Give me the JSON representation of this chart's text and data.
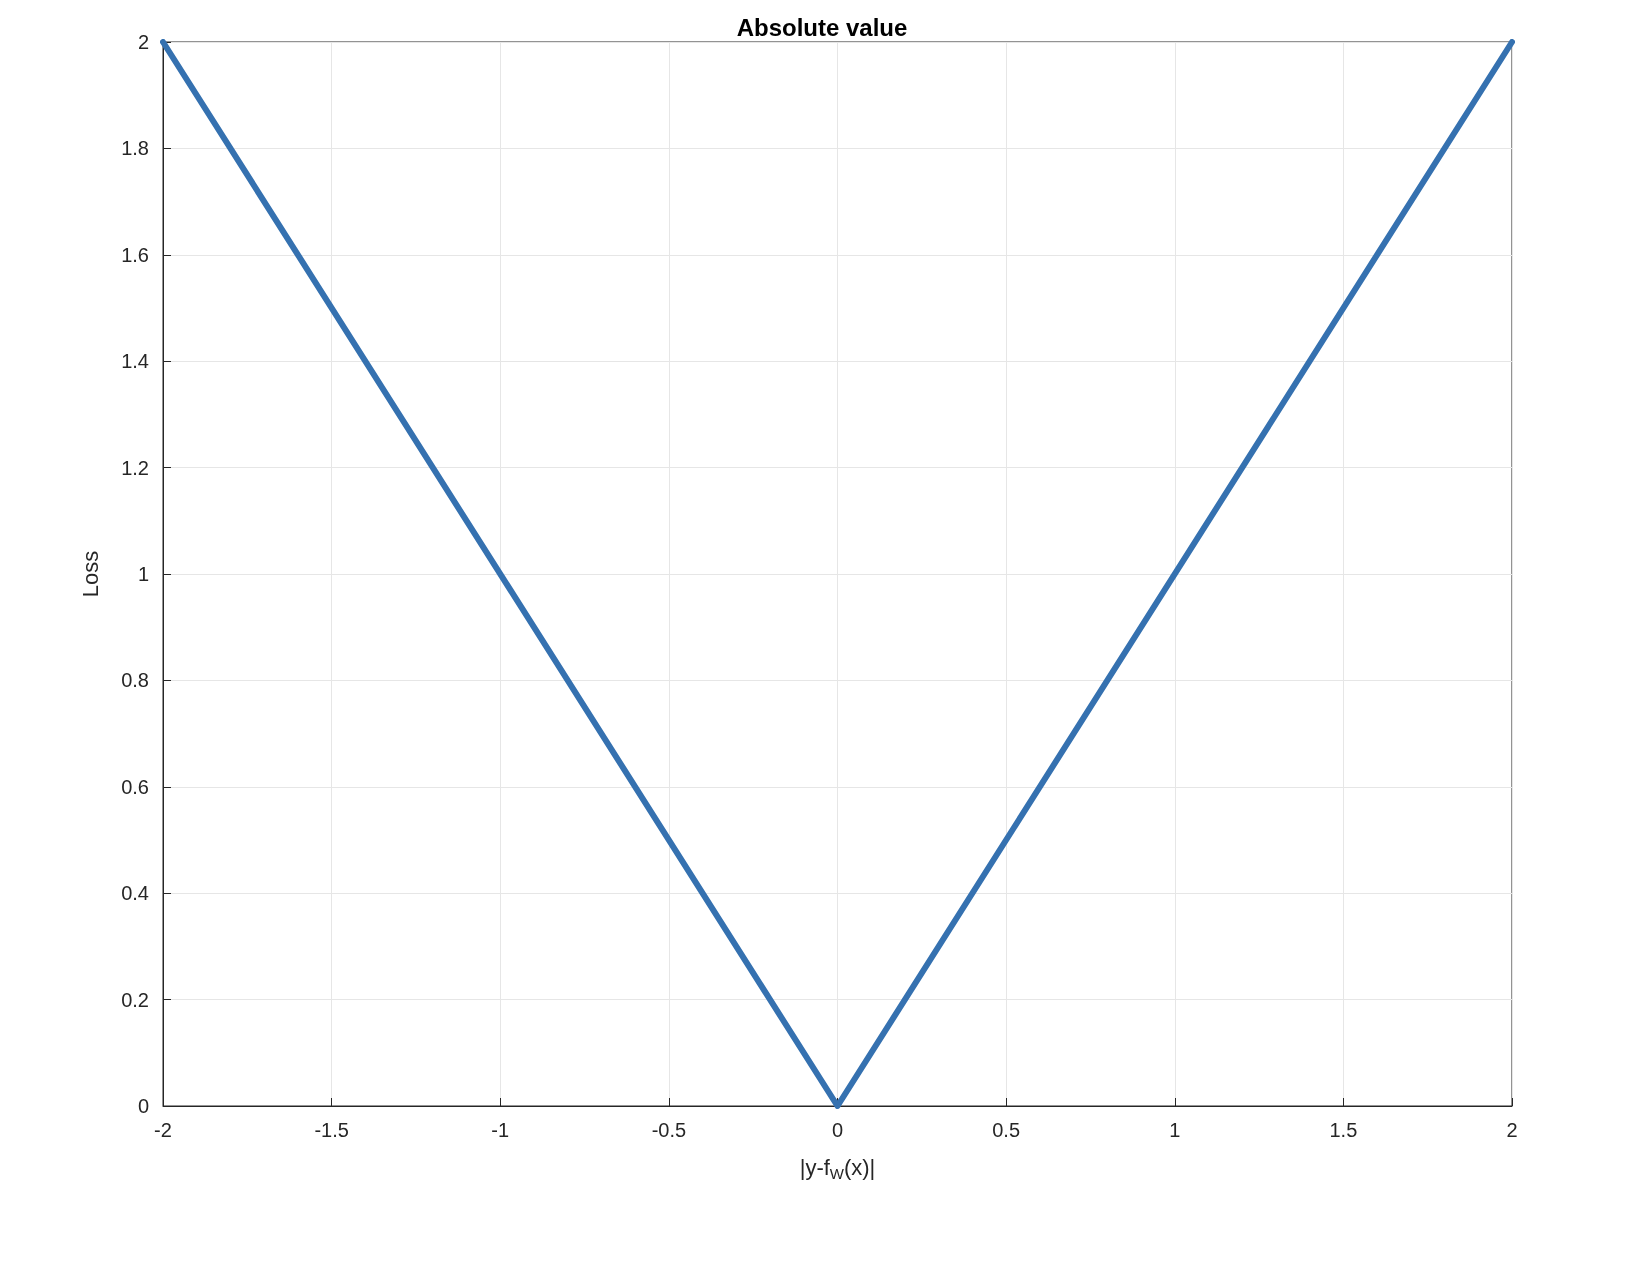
{
  "chart_data": {
    "type": "line",
    "title": "Absolute value",
    "xlabel": "|y-f$_{W}$(x)|",
    "ylabel": "Loss",
    "x": [
      -2,
      0,
      2
    ],
    "series": [
      {
        "color": "#3571b0",
        "values": [
          2,
          0,
          2
        ]
      }
    ],
    "xlim": [
      -2,
      2
    ],
    "xticks": [
      -2,
      -1.5,
      -1,
      -0.5,
      0,
      0.5,
      1,
      1.5,
      2
    ],
    "ylim": [
      0,
      2
    ],
    "yticks": [
      0,
      0.2,
      0.4,
      0.6,
      0.8,
      1,
      1.2,
      1.4,
      1.6,
      1.8,
      2
    ],
    "grid": true,
    "marker": "none",
    "line_style": "solid"
  }
}
